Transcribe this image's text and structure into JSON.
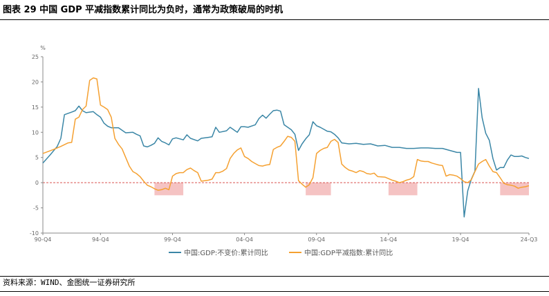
{
  "title": "图表 29  中国 GDP 平减指数累计同比为负时，通常为政策破局的时机",
  "source": "资料来源：WIND、金图统一证券研究所",
  "colors": {
    "series1": "#3a86a6",
    "series2": "#f5a030",
    "zero_line": "#d9534f",
    "highlight": "#f3b8b8",
    "axis": "#888888"
  },
  "chart_data": {
    "type": "line",
    "ylabel": "%",
    "ylim": [
      -10,
      25
    ],
    "yticks": [
      -10,
      -5,
      0,
      5,
      10,
      15,
      20,
      25
    ],
    "xlim": [
      1990.75,
      2024.5
    ],
    "xtick_labels": [
      {
        "x": 1990.75,
        "label": "90-Q4"
      },
      {
        "x": 1994.75,
        "label": "94-Q4"
      },
      {
        "x": 1999.75,
        "label": "99-Q4"
      },
      {
        "x": 2004.75,
        "label": "04-Q4"
      },
      {
        "x": 2009.75,
        "label": "09-Q4"
      },
      {
        "x": 2014.75,
        "label": "14-Q4"
      },
      {
        "x": 2019.75,
        "label": "19-Q4"
      },
      {
        "x": 2024.5,
        "label": "24-Q3"
      }
    ],
    "highlights": [
      {
        "x_start": 1998.5,
        "x_end": 2000.5,
        "y_start": 0,
        "y_end": -2.5
      },
      {
        "x_start": 2009.0,
        "x_end": 2010.75,
        "y_start": 0,
        "y_end": -2.5
      },
      {
        "x_start": 2014.75,
        "x_end": 2016.75,
        "y_start": 0,
        "y_end": -2.5
      },
      {
        "x_start": 2022.5,
        "x_end": 2024.5,
        "y_start": 0,
        "y_end": -2.5
      }
    ],
    "series": [
      {
        "name": "中国:GDP:不变价:累计同比",
        "points": [
          [
            1990.75,
            3.9
          ],
          [
            1991.25,
            5.5
          ],
          [
            1991.75,
            7.2
          ],
          [
            1992.0,
            8.8
          ],
          [
            1992.25,
            13.5
          ],
          [
            1992.75,
            14.0
          ],
          [
            1993.0,
            14.3
          ],
          [
            1993.25,
            15.2
          ],
          [
            1993.5,
            14.3
          ],
          [
            1993.75,
            13.9
          ],
          [
            1994.25,
            14.1
          ],
          [
            1994.5,
            13.5
          ],
          [
            1994.75,
            13.0
          ],
          [
            1995.0,
            11.8
          ],
          [
            1995.25,
            11.2
          ],
          [
            1995.5,
            10.9
          ],
          [
            1996.0,
            10.9
          ],
          [
            1996.5,
            9.9
          ],
          [
            1997.0,
            10.0
          ],
          [
            1997.25,
            9.6
          ],
          [
            1997.5,
            9.3
          ],
          [
            1997.75,
            7.3
          ],
          [
            1998.0,
            7.1
          ],
          [
            1998.25,
            7.4
          ],
          [
            1998.5,
            7.8
          ],
          [
            1998.75,
            8.9
          ],
          [
            1999.0,
            8.2
          ],
          [
            1999.25,
            7.9
          ],
          [
            1999.5,
            7.5
          ],
          [
            1999.75,
            8.7
          ],
          [
            2000.0,
            8.9
          ],
          [
            2000.5,
            8.5
          ],
          [
            2000.75,
            9.5
          ],
          [
            2001.0,
            8.8
          ],
          [
            2001.5,
            8.3
          ],
          [
            2001.75,
            8.8
          ],
          [
            2002.25,
            9.0
          ],
          [
            2002.5,
            9.1
          ],
          [
            2002.75,
            11.0
          ],
          [
            2003.0,
            10.0
          ],
          [
            2003.5,
            10.3
          ],
          [
            2003.75,
            11.0
          ],
          [
            2004.0,
            10.5
          ],
          [
            2004.25,
            10.0
          ],
          [
            2004.5,
            11.1
          ],
          [
            2004.75,
            11.1
          ],
          [
            2005.0,
            11.0
          ],
          [
            2005.5,
            11.5
          ],
          [
            2005.75,
            12.7
          ],
          [
            2006.0,
            13.4
          ],
          [
            2006.25,
            12.8
          ],
          [
            2006.5,
            13.6
          ],
          [
            2006.75,
            14.3
          ],
          [
            2007.0,
            14.4
          ],
          [
            2007.25,
            14.2
          ],
          [
            2007.5,
            11.5
          ],
          [
            2007.75,
            11.0
          ],
          [
            2008.0,
            10.5
          ],
          [
            2008.25,
            9.6
          ],
          [
            2008.5,
            6.4
          ],
          [
            2008.75,
            7.7
          ],
          [
            2009.0,
            8.7
          ],
          [
            2009.25,
            9.5
          ],
          [
            2009.5,
            12.1
          ],
          [
            2009.75,
            11.3
          ],
          [
            2010.0,
            11.0
          ],
          [
            2010.25,
            10.6
          ],
          [
            2010.5,
            10.2
          ],
          [
            2010.75,
            10.1
          ],
          [
            2011.0,
            9.6
          ],
          [
            2011.25,
            8.9
          ],
          [
            2011.5,
            7.9
          ],
          [
            2012.0,
            7.7
          ],
          [
            2012.5,
            7.8
          ],
          [
            2013.0,
            7.6
          ],
          [
            2013.5,
            7.7
          ],
          [
            2014.0,
            7.3
          ],
          [
            2014.5,
            7.4
          ],
          [
            2015.0,
            7.0
          ],
          [
            2015.5,
            7.0
          ],
          [
            2016.0,
            6.8
          ],
          [
            2016.5,
            6.8
          ],
          [
            2017.0,
            6.9
          ],
          [
            2017.5,
            6.9
          ],
          [
            2018.0,
            6.8
          ],
          [
            2018.5,
            6.8
          ],
          [
            2019.0,
            6.4
          ],
          [
            2019.5,
            6.0
          ],
          [
            2019.75,
            6.0
          ],
          [
            2020.0,
            -6.8
          ],
          [
            2020.25,
            -1.6
          ],
          [
            2020.5,
            0.7
          ],
          [
            2020.75,
            2.3
          ],
          [
            2021.0,
            18.7
          ],
          [
            2021.25,
            12.9
          ],
          [
            2021.5,
            9.8
          ],
          [
            2021.75,
            8.4
          ],
          [
            2022.0,
            4.8
          ],
          [
            2022.25,
            2.5
          ],
          [
            2022.5,
            3.0
          ],
          [
            2022.75,
            3.0
          ],
          [
            2023.0,
            4.5
          ],
          [
            2023.25,
            5.5
          ],
          [
            2023.5,
            5.2
          ],
          [
            2023.75,
            5.2
          ],
          [
            2024.0,
            5.3
          ],
          [
            2024.25,
            5.0
          ],
          [
            2024.5,
            4.8
          ]
        ]
      },
      {
        "name": "中国:GDP平减指数:累计同比",
        "points": [
          [
            1990.75,
            5.8
          ],
          [
            1991.5,
            6.6
          ],
          [
            1992.0,
            7.2
          ],
          [
            1992.5,
            7.9
          ],
          [
            1992.75,
            8.0
          ],
          [
            1993.0,
            12.6
          ],
          [
            1993.25,
            13.0
          ],
          [
            1993.5,
            14.5
          ],
          [
            1993.75,
            15.2
          ],
          [
            1994.0,
            20.3
          ],
          [
            1994.25,
            20.8
          ],
          [
            1994.5,
            20.6
          ],
          [
            1994.75,
            15.4
          ],
          [
            1995.0,
            15.0
          ],
          [
            1995.25,
            14.5
          ],
          [
            1995.5,
            13.0
          ],
          [
            1995.75,
            8.8
          ],
          [
            1996.0,
            7.6
          ],
          [
            1996.25,
            6.7
          ],
          [
            1996.5,
            5.0
          ],
          [
            1996.75,
            3.3
          ],
          [
            1997.0,
            2.2
          ],
          [
            1997.25,
            1.8
          ],
          [
            1997.5,
            1.2
          ],
          [
            1997.75,
            0.3
          ],
          [
            1998.0,
            -0.5
          ],
          [
            1998.25,
            -0.8
          ],
          [
            1998.5,
            -1.2
          ],
          [
            1998.75,
            -1.5
          ],
          [
            1999.0,
            -1.4
          ],
          [
            1999.25,
            -1.1
          ],
          [
            1999.5,
            -1.4
          ],
          [
            1999.75,
            1.3
          ],
          [
            2000.0,
            1.8
          ],
          [
            2000.25,
            2.0
          ],
          [
            2000.5,
            2.0
          ],
          [
            2000.75,
            2.6
          ],
          [
            2001.0,
            2.9
          ],
          [
            2001.25,
            2.4
          ],
          [
            2001.5,
            2.0
          ],
          [
            2001.75,
            0.3
          ],
          [
            2002.25,
            0.5
          ],
          [
            2002.5,
            0.7
          ],
          [
            2002.75,
            2.0
          ],
          [
            2003.0,
            2.0
          ],
          [
            2003.25,
            2.3
          ],
          [
            2003.5,
            2.8
          ],
          [
            2003.75,
            4.8
          ],
          [
            2004.0,
            5.8
          ],
          [
            2004.25,
            6.5
          ],
          [
            2004.5,
            6.9
          ],
          [
            2004.75,
            5.2
          ],
          [
            2005.0,
            4.8
          ],
          [
            2005.25,
            4.2
          ],
          [
            2005.5,
            3.8
          ],
          [
            2005.75,
            3.4
          ],
          [
            2006.0,
            3.3
          ],
          [
            2006.25,
            3.5
          ],
          [
            2006.5,
            3.6
          ],
          [
            2006.75,
            6.6
          ],
          [
            2007.0,
            7.0
          ],
          [
            2007.25,
            7.3
          ],
          [
            2007.5,
            8.2
          ],
          [
            2007.75,
            9.2
          ],
          [
            2008.0,
            9.0
          ],
          [
            2008.25,
            8.2
          ],
          [
            2008.5,
            0.4
          ],
          [
            2008.75,
            -0.3
          ],
          [
            2009.0,
            -0.9
          ],
          [
            2009.25,
            -0.4
          ],
          [
            2009.5,
            1.0
          ],
          [
            2009.75,
            5.8
          ],
          [
            2010.0,
            6.4
          ],
          [
            2010.25,
            6.8
          ],
          [
            2010.5,
            7.0
          ],
          [
            2010.75,
            8.2
          ],
          [
            2011.0,
            8.6
          ],
          [
            2011.25,
            8.0
          ],
          [
            2011.5,
            3.7
          ],
          [
            2011.75,
            3.0
          ],
          [
            2012.0,
            2.5
          ],
          [
            2012.25,
            2.3
          ],
          [
            2012.5,
            2.0
          ],
          [
            2012.75,
            2.4
          ],
          [
            2013.0,
            2.2
          ],
          [
            2013.25,
            1.8
          ],
          [
            2013.5,
            1.7
          ],
          [
            2013.75,
            1.9
          ],
          [
            2014.0,
            1.2
          ],
          [
            2014.5,
            1.1
          ],
          [
            2014.75,
            0.8
          ],
          [
            2015.0,
            0.5
          ],
          [
            2015.25,
            0.3
          ],
          [
            2015.5,
            0.0
          ],
          [
            2015.75,
            0.2
          ],
          [
            2016.0,
            0.5
          ],
          [
            2016.25,
            0.7
          ],
          [
            2016.5,
            1.2
          ],
          [
            2016.75,
            4.6
          ],
          [
            2017.0,
            4.3
          ],
          [
            2017.25,
            4.2
          ],
          [
            2017.5,
            4.2
          ],
          [
            2017.75,
            3.9
          ],
          [
            2018.0,
            3.7
          ],
          [
            2018.25,
            3.5
          ],
          [
            2018.5,
            3.4
          ],
          [
            2018.75,
            1.3
          ],
          [
            2019.0,
            1.6
          ],
          [
            2019.25,
            1.5
          ],
          [
            2019.5,
            1.3
          ],
          [
            2019.75,
            0.8
          ],
          [
            2020.0,
            0.2
          ],
          [
            2020.25,
            0.0
          ],
          [
            2020.5,
            0.6
          ],
          [
            2020.75,
            2.2
          ],
          [
            2021.0,
            3.7
          ],
          [
            2021.25,
            4.2
          ],
          [
            2021.5,
            4.6
          ],
          [
            2021.75,
            3.3
          ],
          [
            2022.0,
            2.2
          ],
          [
            2022.25,
            2.0
          ],
          [
            2022.5,
            1.0
          ],
          [
            2022.75,
            -0.1
          ],
          [
            2023.0,
            -0.4
          ],
          [
            2023.25,
            -0.5
          ],
          [
            2023.5,
            -0.7
          ],
          [
            2023.75,
            -1.1
          ],
          [
            2024.0,
            -0.9
          ],
          [
            2024.25,
            -0.8
          ],
          [
            2024.5,
            -0.6
          ]
        ]
      }
    ]
  }
}
